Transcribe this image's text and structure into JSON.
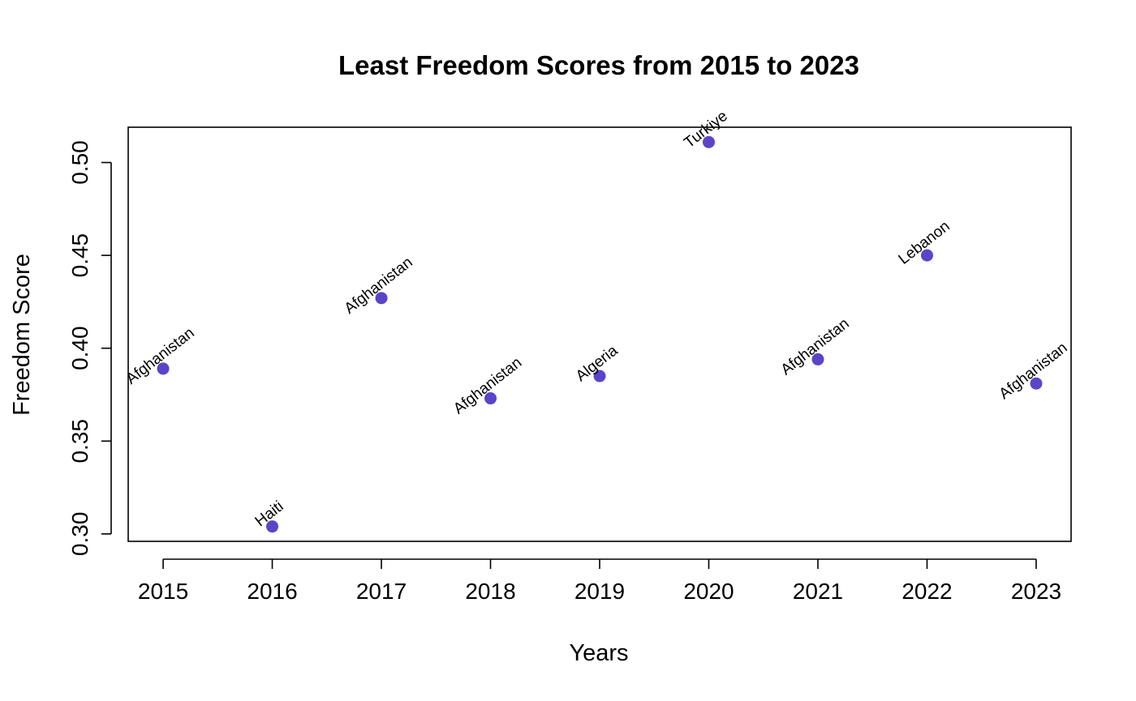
{
  "chart_data": {
    "type": "scatter",
    "title": "Least Freedom Scores from 2015 to 2023",
    "xlabel": "Years",
    "ylabel": "Freedom Score",
    "xlim": [
      2014.68,
      2023.32
    ],
    "ylim": [
      0.296,
      0.519
    ],
    "x_ticks": [
      2015,
      2016,
      2017,
      2018,
      2019,
      2020,
      2021,
      2022,
      2023
    ],
    "y_ticks": [
      0.3,
      0.35,
      0.4,
      0.45,
      0.5
    ],
    "y_tick_labels": [
      "0.30",
      "0.35",
      "0.40",
      "0.45",
      "0.50"
    ],
    "grid": false,
    "legend": "none",
    "point_color": "#5B44C8",
    "points": [
      {
        "x": 2015,
        "y": 0.389,
        "label": "Afghanistan"
      },
      {
        "x": 2016,
        "y": 0.304,
        "label": "Haiti"
      },
      {
        "x": 2017,
        "y": 0.427,
        "label": "Afghanistan"
      },
      {
        "x": 2018,
        "y": 0.373,
        "label": "Afghanistan"
      },
      {
        "x": 2019,
        "y": 0.385,
        "label": "Algeria"
      },
      {
        "x": 2020,
        "y": 0.511,
        "label": "Turkiye"
      },
      {
        "x": 2021,
        "y": 0.394,
        "label": "Afghanistan"
      },
      {
        "x": 2022,
        "y": 0.45,
        "label": "Lebanon"
      },
      {
        "x": 2023,
        "y": 0.381,
        "label": "Afghanistan"
      }
    ]
  }
}
